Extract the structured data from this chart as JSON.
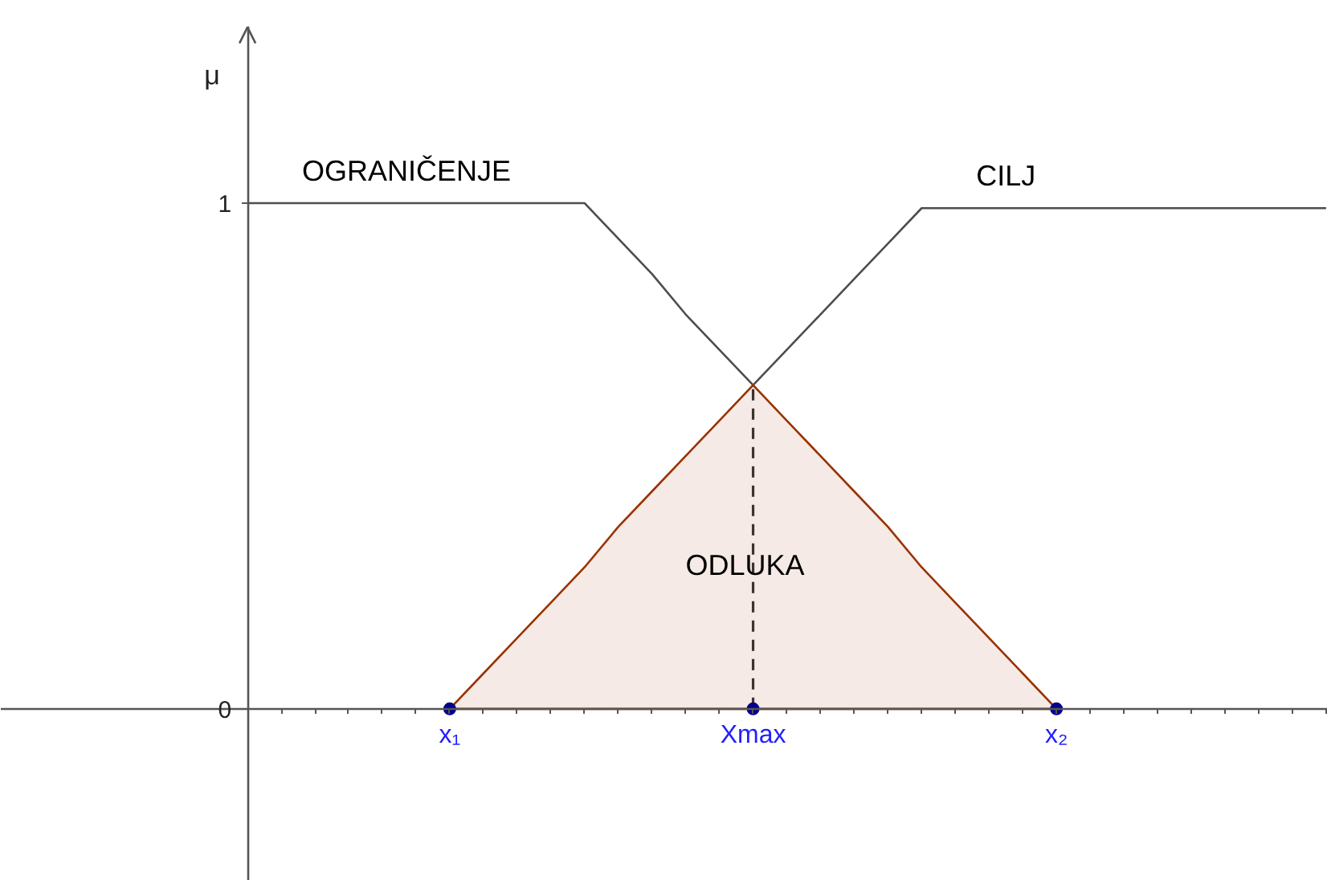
{
  "chart_data": {
    "type": "line",
    "ylabel": "μ",
    "ylim": [
      -0.34,
      1.4
    ],
    "yticks": [
      0,
      1
    ],
    "grid": false,
    "legend": false,
    "marker": "none",
    "line_style": "solid",
    "categories": [
      null,
      null,
      null,
      null,
      null,
      null,
      "x₁",
      null,
      null,
      null,
      null,
      null,
      null,
      null,
      null,
      "Xmax",
      null,
      null,
      null,
      null,
      null,
      null,
      null,
      null,
      "x₂",
      null,
      null,
      null,
      null,
      null,
      null,
      null,
      null
    ],
    "series": [
      {
        "name": "OGRANIČENJE",
        "color": "#4d4d4d",
        "values": [
          1,
          1,
          1,
          1,
          1,
          1,
          1,
          1,
          1,
          1,
          1,
          0.93,
          0.86,
          0.78,
          0.71,
          0.64,
          null,
          null,
          null,
          null,
          null,
          null,
          null,
          null,
          null,
          null,
          null,
          null,
          null,
          null,
          null,
          null,
          null
        ]
      },
      {
        "name": "CILJ",
        "color": "#4d4d4d",
        "values": [
          null,
          null,
          null,
          null,
          null,
          null,
          null,
          null,
          null,
          null,
          null,
          null,
          null,
          null,
          null,
          0.64,
          0.71,
          0.78,
          0.85,
          0.92,
          0.99,
          0.99,
          0.99,
          0.99,
          0.99,
          0.99,
          0.99,
          0.99,
          0.99,
          0.99,
          0.99,
          0.99,
          0.99
        ]
      },
      {
        "name": "ODLUKA",
        "type": "area",
        "color": "#993300",
        "values": [
          null,
          null,
          null,
          null,
          null,
          null,
          0,
          0.07,
          0.14,
          0.21,
          0.28,
          0.36,
          0.43,
          0.5,
          0.57,
          0.64,
          0.57,
          0.5,
          0.43,
          0.36,
          0.28,
          0.21,
          0.14,
          0.07,
          0,
          null,
          null,
          null,
          null,
          null,
          null,
          null,
          null
        ]
      },
      {
        "type": "scatter",
        "color": "#00008b",
        "marker": "circle",
        "values": [
          null,
          null,
          null,
          null,
          null,
          null,
          0,
          null,
          null,
          null,
          null,
          null,
          null,
          null,
          null,
          0,
          null,
          null,
          null,
          null,
          null,
          null,
          null,
          null,
          0,
          null,
          null,
          null,
          null,
          null,
          null,
          null,
          null
        ]
      }
    ],
    "ref_lines": [
      {
        "axis": "x",
        "value": "Xmax",
        "color": "#333333",
        "line_style": "dashed"
      }
    ]
  }
}
